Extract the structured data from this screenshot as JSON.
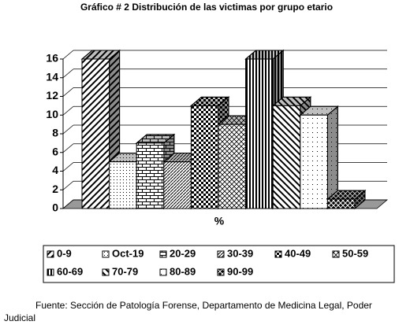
{
  "chart_data": {
    "type": "bar3d",
    "title": "Gráfico # 2 Distribución de las victimas por grupo etario",
    "categories": [
      "%"
    ],
    "series": [
      {
        "name": "0-9",
        "values": [
          16
        ],
        "pattern": "diag-up"
      },
      {
        "name": "Oct-19",
        "values": [
          5
        ],
        "pattern": "dots"
      },
      {
        "name": "20-29",
        "values": [
          7
        ],
        "pattern": "brick"
      },
      {
        "name": "30-39",
        "values": [
          5
        ],
        "pattern": "fine-diag"
      },
      {
        "name": "40-49",
        "values": [
          11
        ],
        "pattern": "checker"
      },
      {
        "name": "50-59",
        "values": [
          9
        ],
        "pattern": "diag-check"
      },
      {
        "name": "60-69",
        "values": [
          16
        ],
        "pattern": "vertical"
      },
      {
        "name": "70-79",
        "values": [
          11
        ],
        "pattern": "diag-down"
      },
      {
        "name": "80-89",
        "values": [
          10
        ],
        "pattern": "sparse-dots"
      },
      {
        "name": "90-99",
        "values": [
          1
        ],
        "pattern": "cross"
      }
    ],
    "ylim": [
      0,
      16
    ],
    "yticks": [
      0,
      2,
      4,
      6,
      8,
      10,
      12,
      14,
      16
    ],
    "grid": true,
    "source": "Fuente: Sección de Patología Forense, Departamento de Medicina Legal, Poder Judicial"
  }
}
